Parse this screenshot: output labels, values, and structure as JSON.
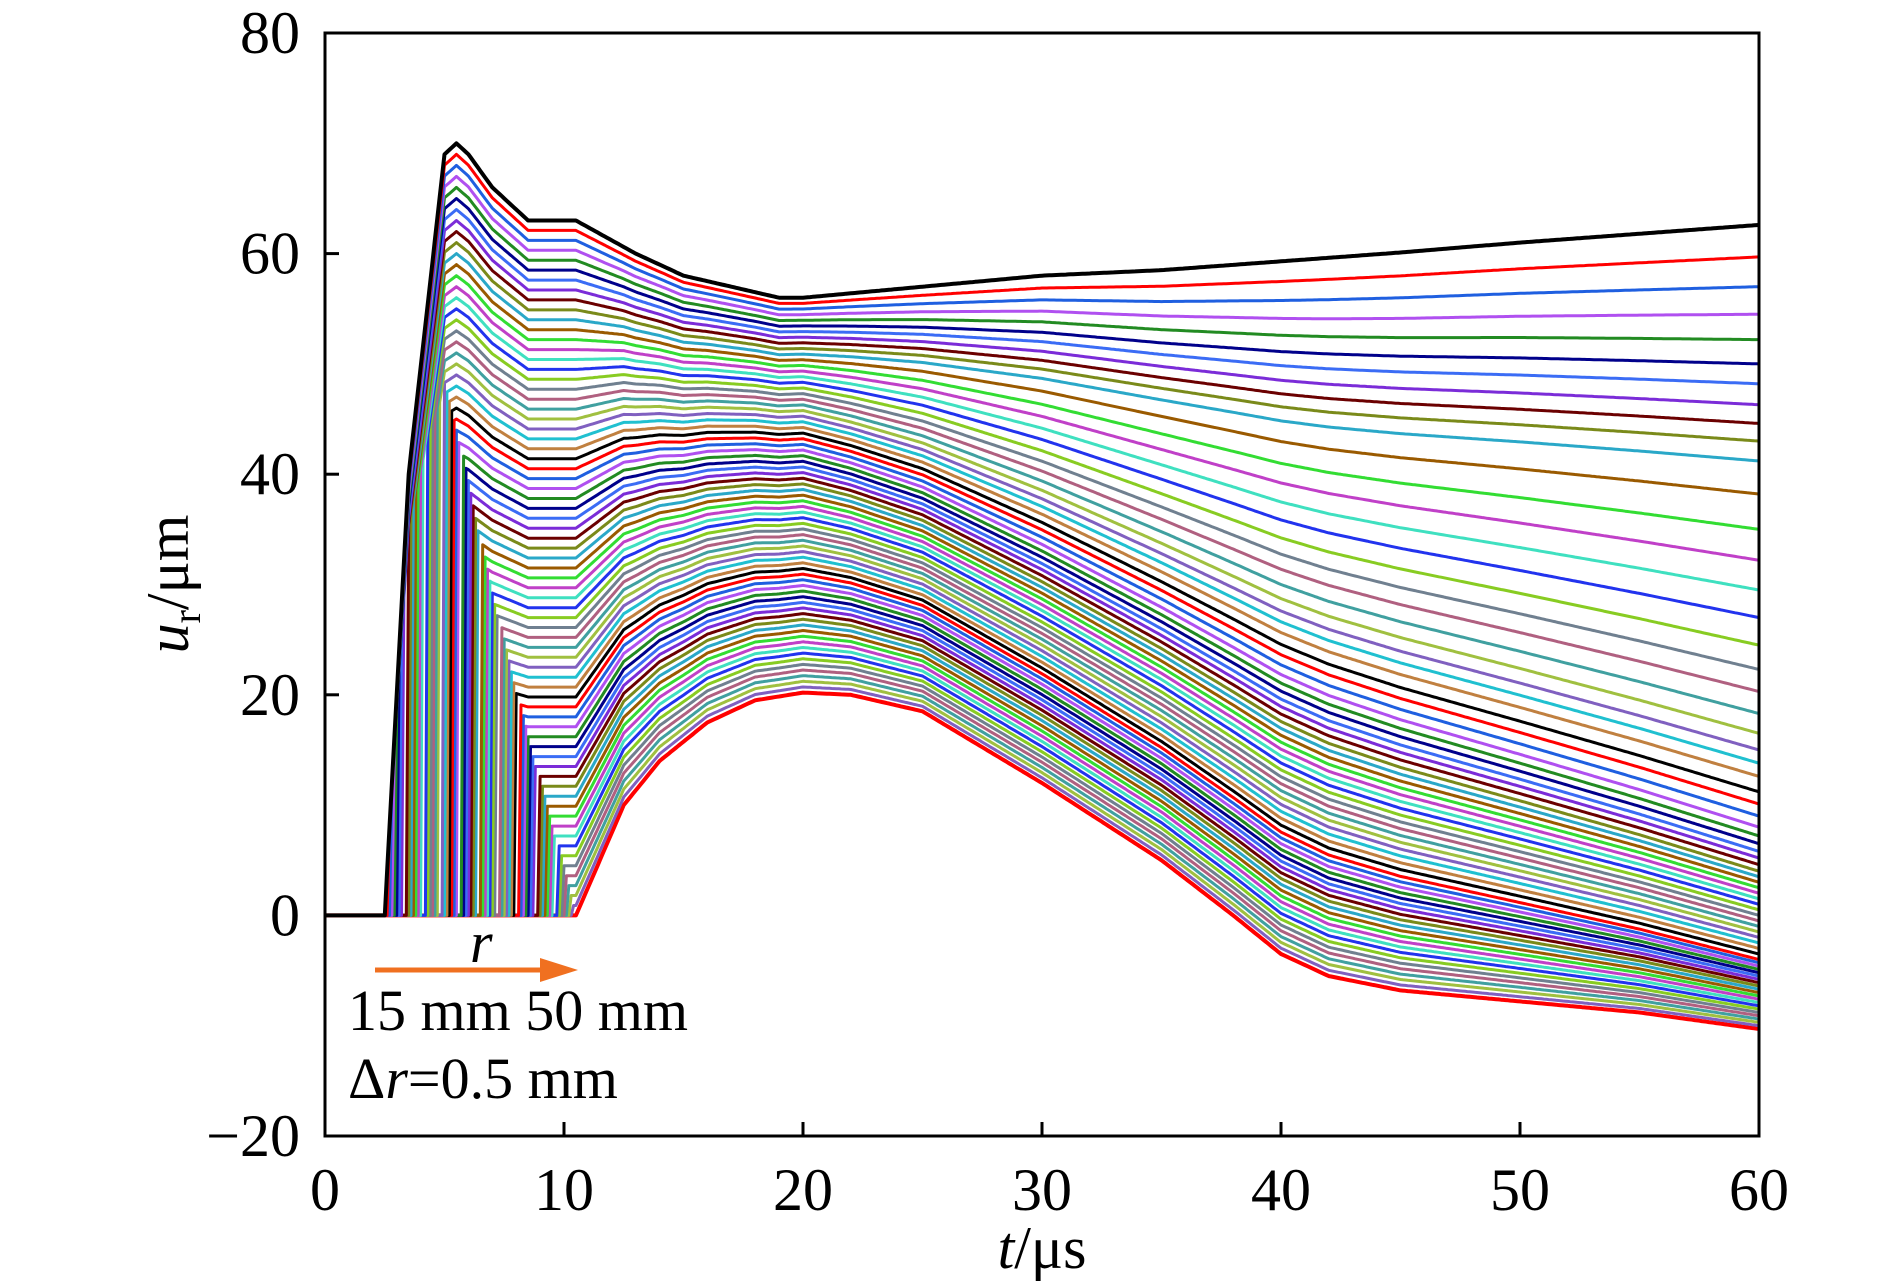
{
  "chart_data": {
    "type": "line",
    "xlabel": "t/μs",
    "ylabel": "u_r/μm",
    "xlim": [
      0,
      60
    ],
    "ylim": [
      -20,
      80
    ],
    "x_ticks": [
      "0",
      "10",
      "20",
      "30",
      "40",
      "50",
      "60"
    ],
    "y_ticks": [
      "−20",
      "0",
      "20",
      "40",
      "60",
      "80"
    ],
    "grid": false,
    "legend": "none",
    "annotations": {
      "r_label": "r",
      "range_text": "15 mm 50 mm",
      "delta_prefix": "Δ",
      "delta_var": "r",
      "delta_suffix": "=0.5 mm"
    },
    "family": {
      "radius_start_mm": 15,
      "radius_end_mm": 50,
      "radius_step_mm": 0.5,
      "curve_count": 71
    },
    "first_curve": {
      "radius_mm": 15,
      "x": [
        0,
        2.5,
        3.5,
        5.0,
        5.5,
        6.0,
        7.0,
        8.5,
        10.5,
        13.0,
        15.0,
        17.0,
        19.0,
        20.0,
        25.0,
        30.0,
        35.0,
        40.0,
        45.0,
        50.0,
        55.0,
        60.0
      ],
      "y": [
        0,
        0,
        40,
        69,
        70,
        69,
        66,
        63,
        63,
        60,
        58,
        57,
        56,
        56,
        57,
        58,
        58.5,
        59.3,
        60.1,
        61,
        61.8,
        62.6
      ]
    },
    "last_curve": {
      "radius_mm": 50,
      "x": [
        0,
        10.5,
        11.5,
        12.5,
        14.0,
        16.0,
        18.0,
        20.0,
        22.0,
        25.0,
        30.0,
        35.0,
        38.0,
        40.0,
        42.0,
        45.0,
        50.0,
        55.0,
        60.0
      ],
      "y": [
        0,
        0,
        5,
        10,
        14,
        17.5,
        19.5,
        20.2,
        20.0,
        18.5,
        12,
        5,
        0,
        -3.5,
        -5.5,
        -6.8,
        -7.8,
        -8.8,
        -10.3
      ]
    },
    "end_values_at_60us": [
      62.6,
      59.7,
      57.0,
      54.5,
      52.2,
      50.0,
      48.2,
      46.3,
      44.6,
      43.0,
      41.2,
      38.2,
      35.0,
      32.2,
      29.5,
      27.0,
      24.5,
      22.3,
      20.3,
      18.3,
      16.5,
      15.0,
      13.8,
      12.6,
      11.2,
      10.1,
      9.0,
      8.0,
      7.2,
      6.5,
      5.8,
      5.2,
      4.6,
      4.0,
      3.5,
      3.0,
      2.5,
      2.0,
      1.5,
      1.0,
      0.5,
      0.0,
      -0.5,
      -1.0,
      -1.5,
      -2.0,
      -2.5,
      -3.0,
      -3.5,
      -4.0,
      -4.3,
      -4.6,
      -4.9,
      -5.2,
      -5.5,
      -5.8,
      -6.1,
      -6.4,
      -6.7,
      -7.0,
      -7.3,
      -7.6,
      -7.9,
      -8.2,
      -8.5,
      -8.8,
      -9.1,
      -9.4,
      -9.7,
      -10.0,
      -10.3
    ],
    "palette": [
      "#000000",
      "#ff0000",
      "#1f5fe0",
      "#b050f0",
      "#228b22",
      "#00008b",
      "#3b6cf5",
      "#7b2cd8",
      "#6b0000",
      "#7a8a1a",
      "#2aa8c8",
      "#9a5a00",
      "#33dd33",
      "#c040c8",
      "#3fe0c0",
      "#2233ee",
      "#88cc22",
      "#708090",
      "#b06080",
      "#40a0a0",
      "#a0c040",
      "#8060c0",
      "#20c0d0",
      "#c08040"
    ]
  }
}
